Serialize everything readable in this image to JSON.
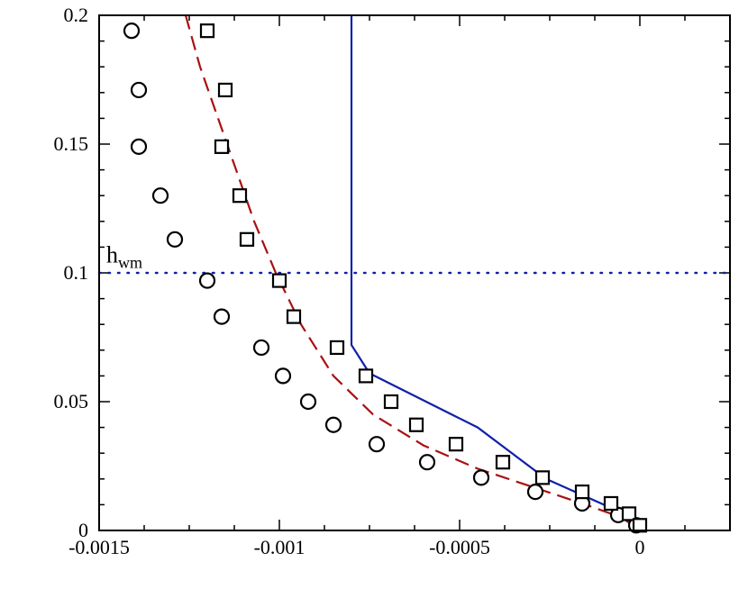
{
  "chart_data": {
    "type": "scatter",
    "title": "",
    "xlabel": "",
    "ylabel": "",
    "xlim": [
      -0.0015,
      0.00025
    ],
    "ylim": [
      0,
      0.2
    ],
    "x_ticks": [
      {
        "value": -0.0015,
        "label": "-0.0015"
      },
      {
        "value": -0.001,
        "label": "-0.001"
      },
      {
        "value": -0.0005,
        "label": "-0.0005"
      },
      {
        "value": 0,
        "label": "0"
      }
    ],
    "y_ticks": [
      {
        "value": 0,
        "label": "0"
      },
      {
        "value": 0.05,
        "label": "0.05"
      },
      {
        "value": 0.1,
        "label": "0.1"
      },
      {
        "value": 0.15,
        "label": "0.15"
      },
      {
        "value": 0.2,
        "label": "0.2"
      }
    ],
    "grid": false,
    "series": [
      {
        "marker": "circle",
        "color": "#000000",
        "points": [
          [
            -0.00141,
            0.194
          ],
          [
            -0.00139,
            0.171
          ],
          [
            -0.00139,
            0.149
          ],
          [
            -0.00133,
            0.13
          ],
          [
            -0.00129,
            0.113
          ],
          [
            -0.0012,
            0.097
          ],
          [
            -0.00116,
            0.083
          ],
          [
            -0.00105,
            0.071
          ],
          [
            -0.00099,
            0.06
          ],
          [
            -0.00092,
            0.05
          ],
          [
            -0.00085,
            0.041
          ],
          [
            -0.00073,
            0.0335
          ],
          [
            -0.00059,
            0.0265
          ],
          [
            -0.00044,
            0.0205
          ],
          [
            -0.00029,
            0.015
          ],
          [
            -0.00016,
            0.0105
          ],
          [
            -6e-05,
            0.006
          ],
          [
            -1e-05,
            0.002
          ]
        ]
      },
      {
        "marker": "square",
        "color": "#000000",
        "points": [
          [
            -0.0012,
            0.194
          ],
          [
            -0.00115,
            0.171
          ],
          [
            -0.00116,
            0.149
          ],
          [
            -0.00111,
            0.13
          ],
          [
            -0.00109,
            0.113
          ],
          [
            -0.001,
            0.097
          ],
          [
            -0.00096,
            0.083
          ],
          [
            -0.00084,
            0.071
          ],
          [
            -0.00076,
            0.06
          ],
          [
            -0.00069,
            0.05
          ],
          [
            -0.00062,
            0.041
          ],
          [
            -0.00051,
            0.0335
          ],
          [
            -0.00038,
            0.0265
          ],
          [
            -0.00027,
            0.0205
          ],
          [
            -0.00016,
            0.015
          ],
          [
            -8e-05,
            0.0105
          ],
          [
            -3e-05,
            0.0065
          ],
          [
            0.0,
            0.002
          ]
        ]
      },
      {
        "line": "solid",
        "color": "#1020a8",
        "points": [
          [
            -0.0008,
            0.2
          ],
          [
            -0.0008,
            0.072
          ],
          [
            -0.00075,
            0.061
          ],
          [
            -0.00045,
            0.04
          ],
          [
            -0.00026,
            0.02
          ],
          [
            -0.0001,
            0.01
          ],
          [
            0.0,
            0.001
          ]
        ]
      },
      {
        "line": "dashed",
        "color": "#aa1010",
        "points": [
          [
            -0.00126,
            0.2
          ],
          [
            -0.00122,
            0.18
          ],
          [
            -0.00117,
            0.16
          ],
          [
            -0.00112,
            0.14
          ],
          [
            -0.00107,
            0.12
          ],
          [
            -0.00101,
            0.1
          ],
          [
            -0.00094,
            0.08
          ],
          [
            -0.00085,
            0.06
          ],
          [
            -0.00074,
            0.045
          ],
          [
            -0.0006,
            0.033
          ],
          [
            -0.00045,
            0.024
          ],
          [
            -0.0003,
            0.017
          ],
          [
            -0.00015,
            0.01
          ],
          [
            -5e-05,
            0.005
          ],
          [
            0.0,
            0.0
          ]
        ]
      }
    ],
    "reference_line": {
      "y": 0.1,
      "style": "dotted",
      "color": "#1020a8"
    },
    "annotation": {
      "text": "h",
      "subscript": "wm",
      "x": -0.00148,
      "y": 0.104
    }
  }
}
